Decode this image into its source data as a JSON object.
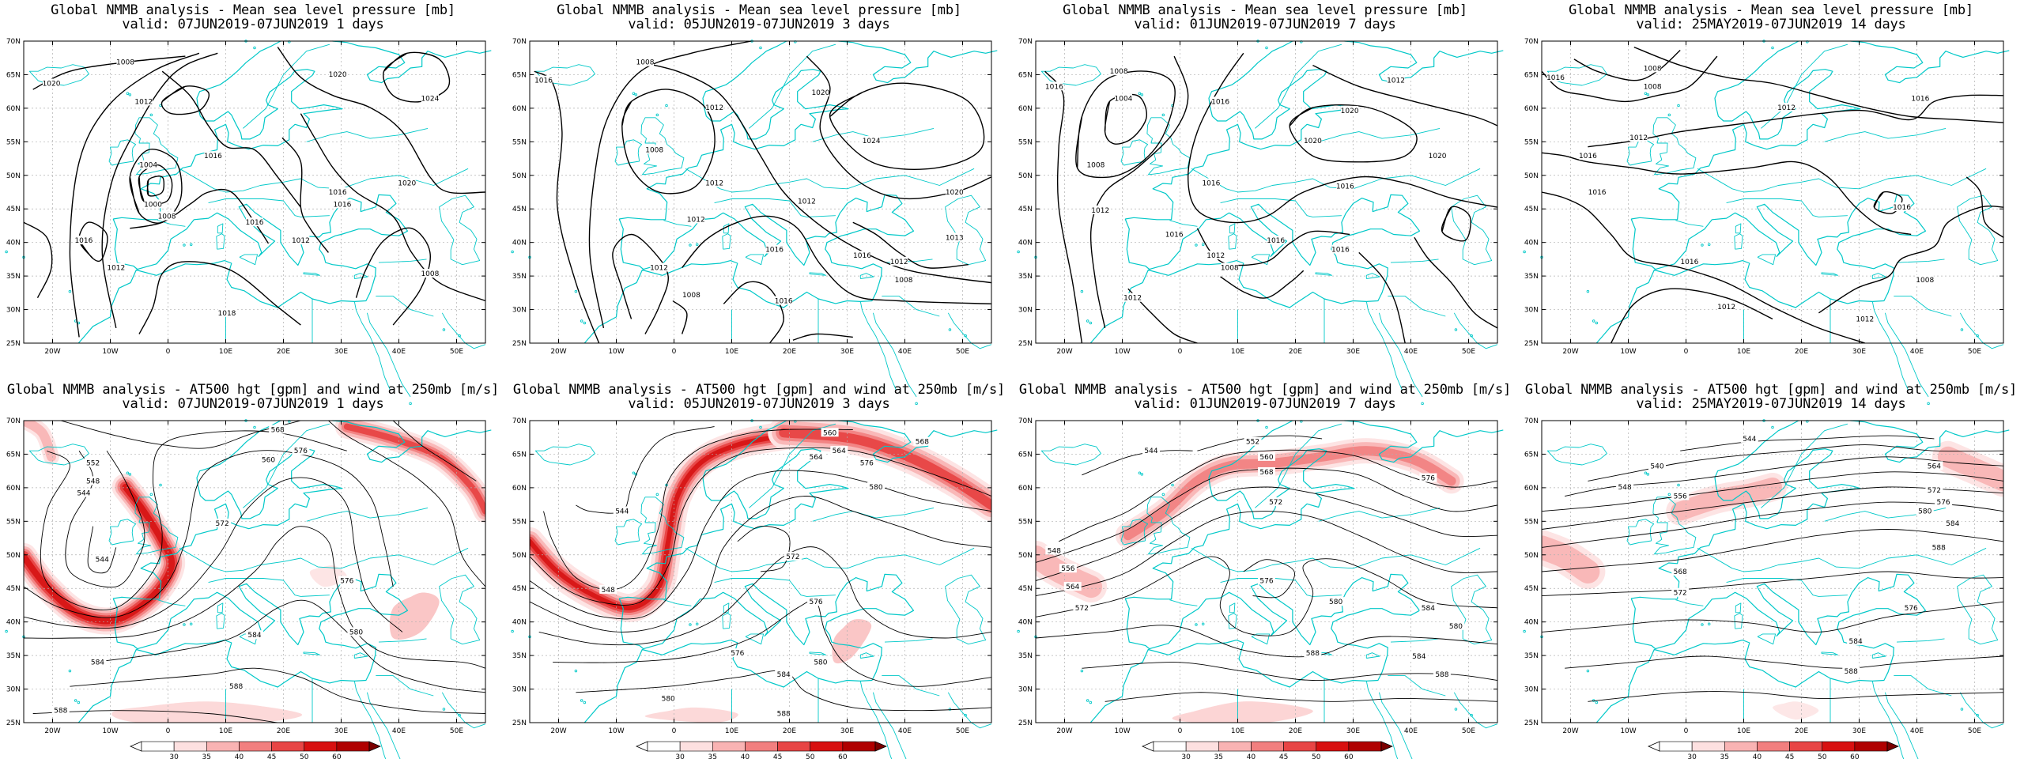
{
  "axes": {
    "lat_labels": [
      "70N",
      "65N",
      "60N",
      "55N",
      "50N",
      "45N",
      "40N",
      "35N",
      "30N",
      "25N"
    ],
    "lon_labels": [
      "20W",
      "10W",
      "0",
      "10E",
      "20E",
      "30E",
      "40E",
      "50E"
    ]
  },
  "colorbar": {
    "ticks": [
      "30",
      "35",
      "40",
      "45",
      "50",
      "60"
    ],
    "colors": [
      "#ffffff",
      "#fde0e0",
      "#f9b3b3",
      "#f27f7f",
      "#e84545",
      "#d81010",
      "#b00000"
    ]
  },
  "colors": {
    "coast": "#00c8c8",
    "grid": "#b0b0b0",
    "jet": "#e83030"
  },
  "panels": [
    {
      "id": "p1",
      "title": "Global NMMB analysis - Mean sea level pressure [mb]",
      "subtitle": "valid: 07JUN2019-07JUN2019  1 days",
      "labels": [
        "1020",
        "1008",
        "1012",
        "1020",
        "1024",
        "1004",
        "1000",
        "1008",
        "1016",
        "1016",
        "1016",
        "1016",
        "1012",
        "1016",
        "1012",
        "1018",
        "1020",
        "1008"
      ]
    },
    {
      "id": "p2",
      "title": "Global NMMB analysis - Mean sea level pressure [mb]",
      "subtitle": "valid: 05JUN2019-07JUN2019  3 days",
      "labels": [
        "1016",
        "1008",
        "1012",
        "1012",
        "1020",
        "1024",
        "1008",
        "1012",
        "1012",
        "1016",
        "1012",
        "1020",
        "1013",
        "1016",
        "1012",
        "1008",
        "1016",
        "1008"
      ]
    },
    {
      "id": "p3",
      "title": "Global NMMB analysis - Mean sea level pressure [mb]",
      "subtitle": "valid: 01JUN2019-07JUN2019  7 days",
      "labels": [
        "1016",
        "1008",
        "1004",
        "1008",
        "1012",
        "1016",
        "1020",
        "1020",
        "1012",
        "1020",
        "1016",
        "1016",
        "1016",
        "1016",
        "1012",
        "1016",
        "1008",
        "1012"
      ]
    },
    {
      "id": "p4",
      "title": "Global NMMB analysis - Mean sea level pressure [mb]",
      "subtitle": "valid: 25MAY2019-07JUN2019  14 days",
      "labels": [
        "1016",
        "1008",
        "1008",
        "1016",
        "1012",
        "1012",
        "1016",
        "1016",
        "1016",
        "1016",
        "1008",
        "1012",
        "1012"
      ]
    },
    {
      "id": "p5",
      "title": "Global NMMB analysis - AT500 hgt [gpm] and wind at 250mb [m/s]",
      "subtitle": "valid: 07JUN2019-07JUN2019  1 days",
      "labels": [
        "552",
        "548",
        "544",
        "544",
        "568",
        "576",
        "560",
        "572",
        "576",
        "580",
        "584",
        "584",
        "588",
        "588"
      ]
    },
    {
      "id": "p6",
      "title": "Global NMMB analysis - AT500 hgt [gpm] and wind at 250mb [m/s]",
      "subtitle": "valid: 05JUN2019-07JUN2019  3 days",
      "labels": [
        "544",
        "548",
        "568",
        "564",
        "576",
        "580",
        "572",
        "576",
        "580",
        "584",
        "588",
        "580",
        "560",
        "564",
        "576"
      ]
    },
    {
      "id": "p7",
      "title": "Global NMMB analysis - AT500 hgt [gpm] and wind at 250mb [m/s]",
      "subtitle": "valid: 01JUN2019-07JUN2019  7 days",
      "labels": [
        "544",
        "552",
        "560",
        "568",
        "572",
        "548",
        "556",
        "564",
        "572",
        "576",
        "580",
        "584",
        "588",
        "576",
        "580",
        "584",
        "588"
      ]
    },
    {
      "id": "p8",
      "title": "Global NMMB analysis - AT500 hgt [gpm] and wind at 250mb [m/s]",
      "subtitle": "valid: 25MAY2019-07JUN2019  14 days",
      "labels": [
        "544",
        "540",
        "548",
        "556",
        "564",
        "572",
        "576",
        "580",
        "584",
        "588",
        "568",
        "572",
        "576",
        "584",
        "588"
      ]
    }
  ]
}
